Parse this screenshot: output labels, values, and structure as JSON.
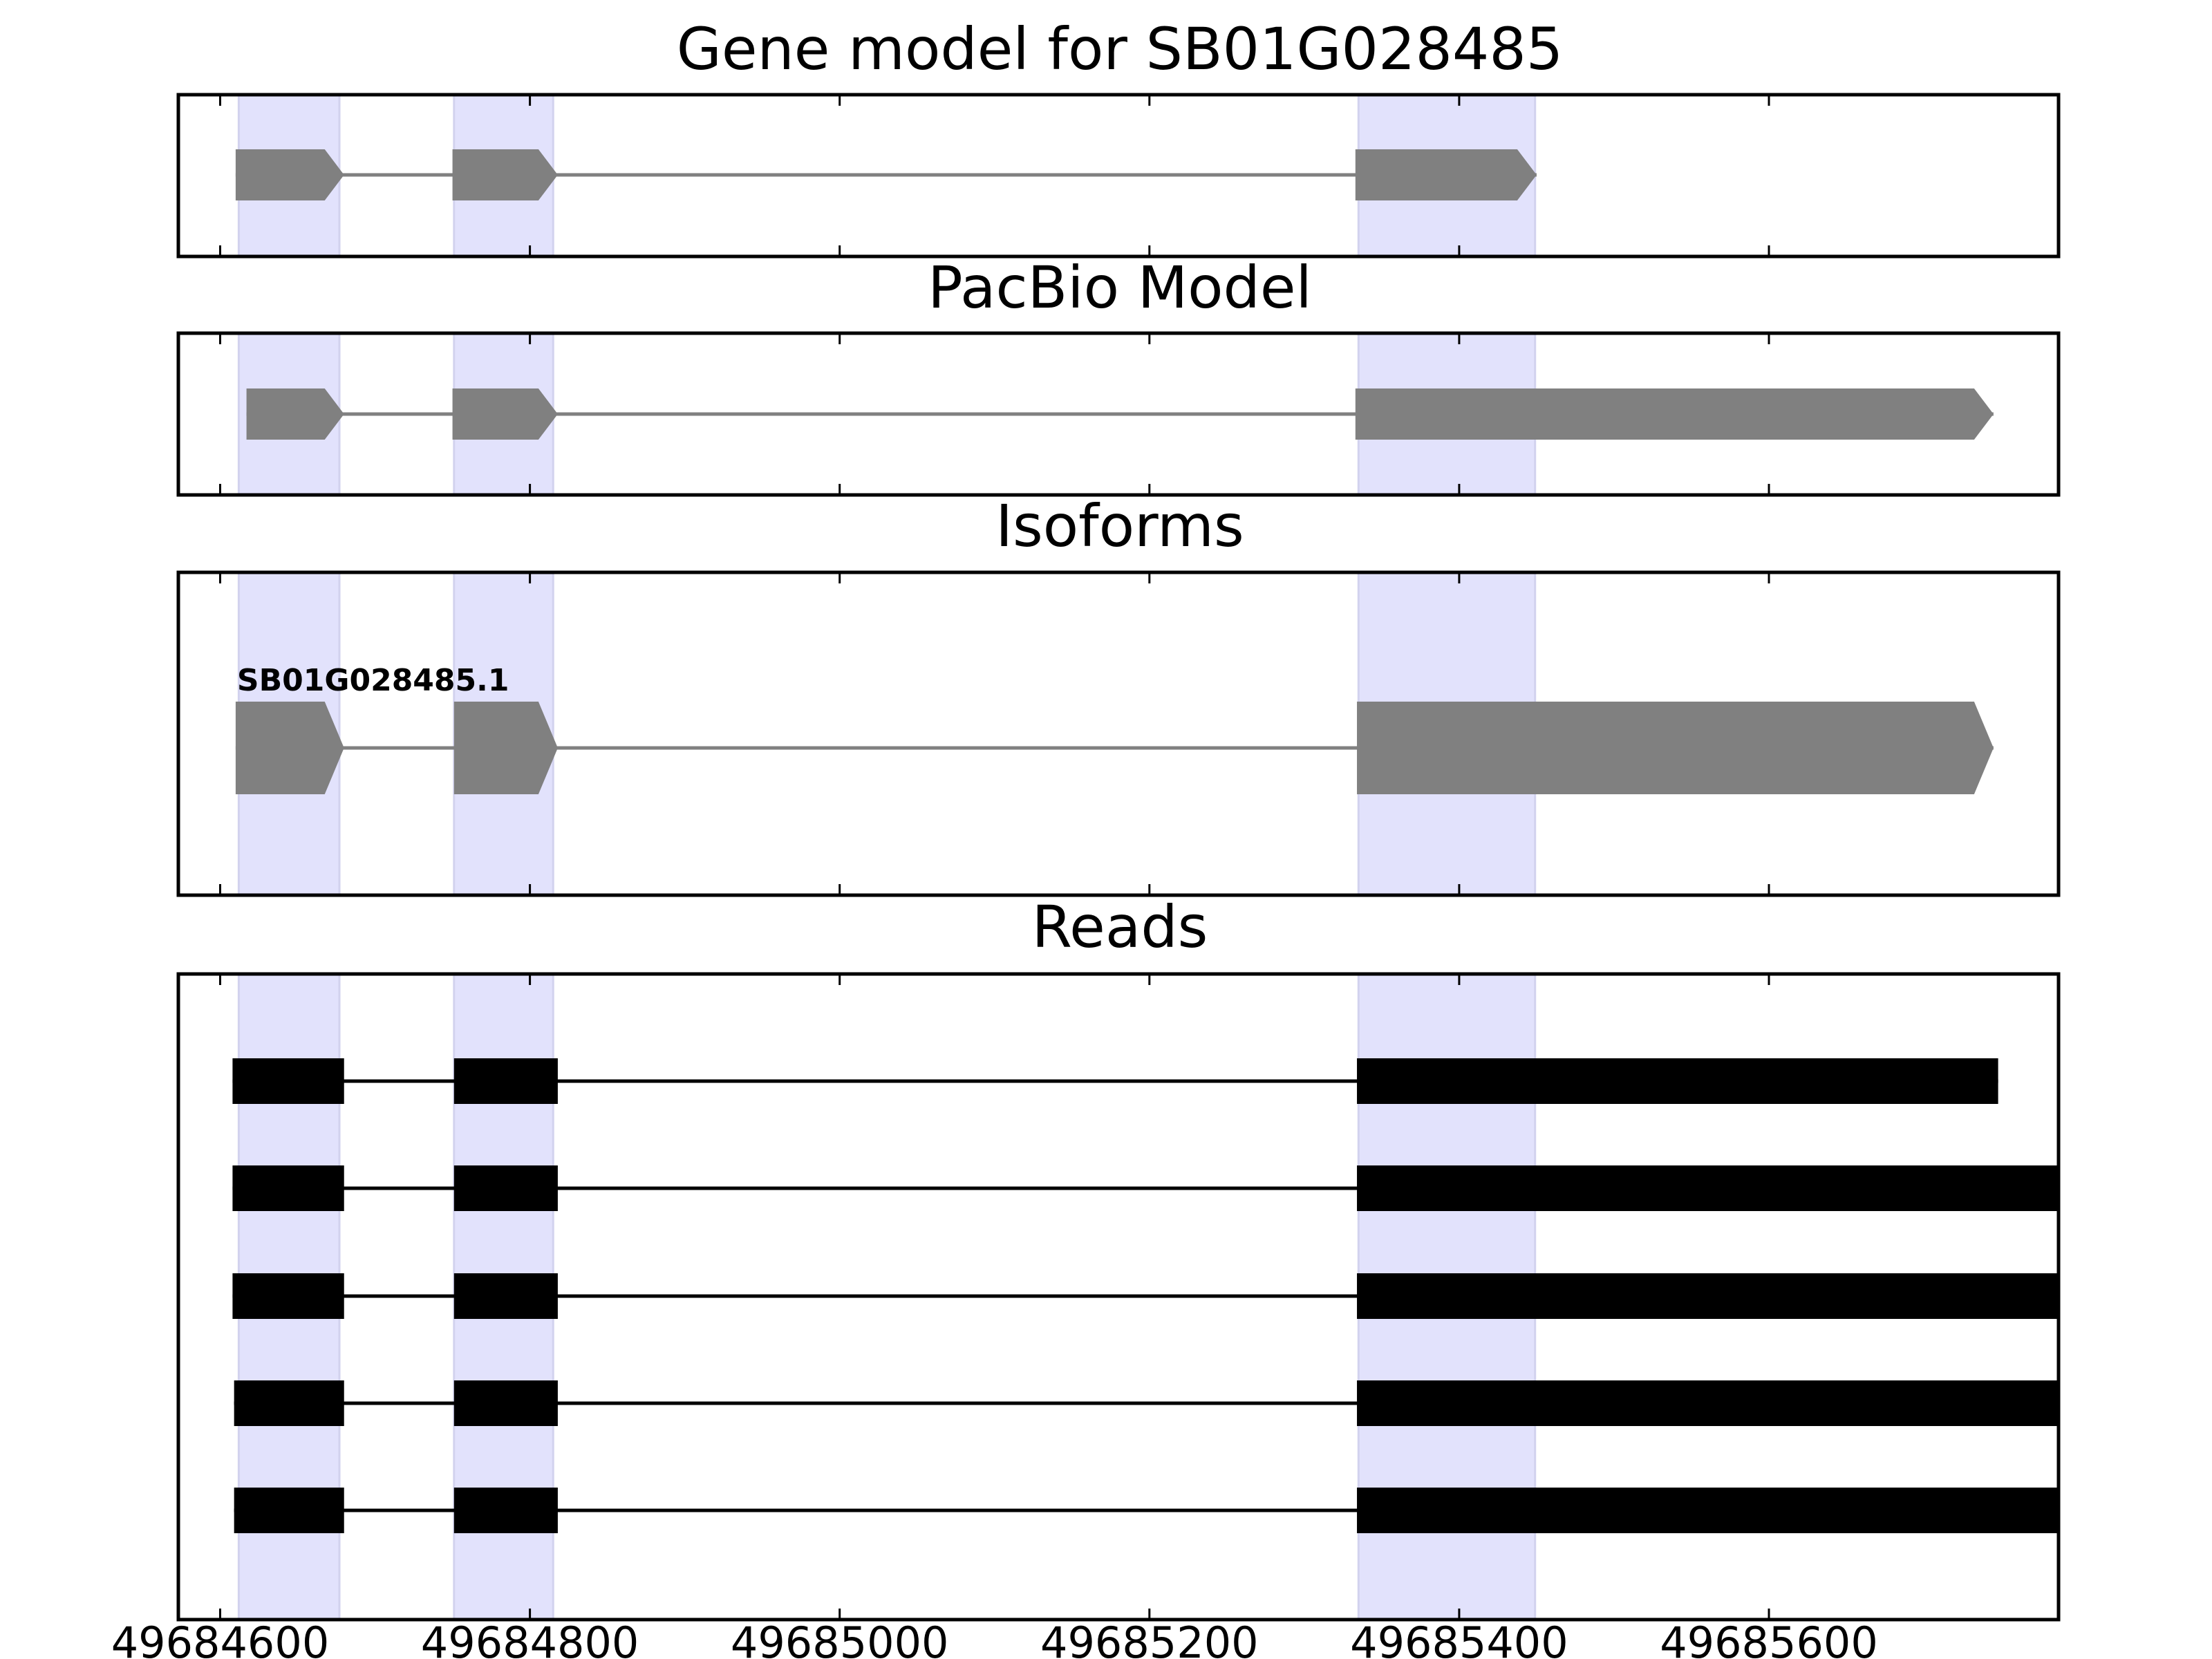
{
  "chart_data": {
    "type": "gene-structure",
    "panels": [
      {
        "title": "Gene model for SB01G028485",
        "style": "gene",
        "tracks": [
          {
            "exons": [
              [
                49684610,
                49684680
              ],
              [
                49684750,
                49684818
              ],
              [
                49685333,
                49685450
              ]
            ]
          }
        ]
      },
      {
        "title": "PacBio Model",
        "style": "gene",
        "tracks": [
          {
            "exons": [
              [
                49684617,
                49684680
              ],
              [
                49684750,
                49684818
              ],
              [
                49685333,
                49685745
              ]
            ]
          }
        ]
      },
      {
        "title": "Isoforms",
        "style": "isoform",
        "tracks": [
          {
            "label": "SB01G028485.1",
            "exons": [
              [
                49684610,
                49684680
              ],
              [
                49684751,
                49684818
              ],
              [
                49685334,
                49685745
              ]
            ]
          }
        ]
      },
      {
        "title": "Reads",
        "style": "reads",
        "tracks": [
          {
            "exons": [
              [
                49684608,
                49684680
              ],
              [
                49684751,
                49684818
              ],
              [
                49685334,
                49685748
              ]
            ]
          },
          {
            "exons": [
              [
                49684608,
                49684680
              ],
              [
                49684751,
                49684818
              ],
              [
                49685334,
                49685790
              ]
            ]
          },
          {
            "exons": [
              [
                49684608,
                49684680
              ],
              [
                49684751,
                49684818
              ],
              [
                49685334,
                49685790
              ]
            ]
          },
          {
            "exons": [
              [
                49684609,
                49684680
              ],
              [
                49684751,
                49684818
              ],
              [
                49685334,
                49685790
              ]
            ]
          },
          {
            "exons": [
              [
                49684609,
                49684680
              ],
              [
                49684751,
                49684818
              ],
              [
                49685334,
                49685790
              ]
            ]
          }
        ]
      }
    ],
    "highlight_regions": [
      [
        49684612,
        49684677
      ],
      [
        49684751,
        49684815
      ],
      [
        49685335,
        49685449
      ]
    ],
    "xlim": [
      49684573,
      49685787
    ],
    "xticks": [
      49684600,
      49684800,
      49685000,
      49685200,
      49685400,
      49685600
    ],
    "xtick_labels": [
      "49684600",
      "49684800",
      "49685000",
      "49685200",
      "49685400",
      "49685600"
    ],
    "xlabel": "",
    "colors": {
      "highlight": "#e2e2fc",
      "gene": "#808080",
      "intron": "#808080",
      "read": "#000000"
    }
  }
}
